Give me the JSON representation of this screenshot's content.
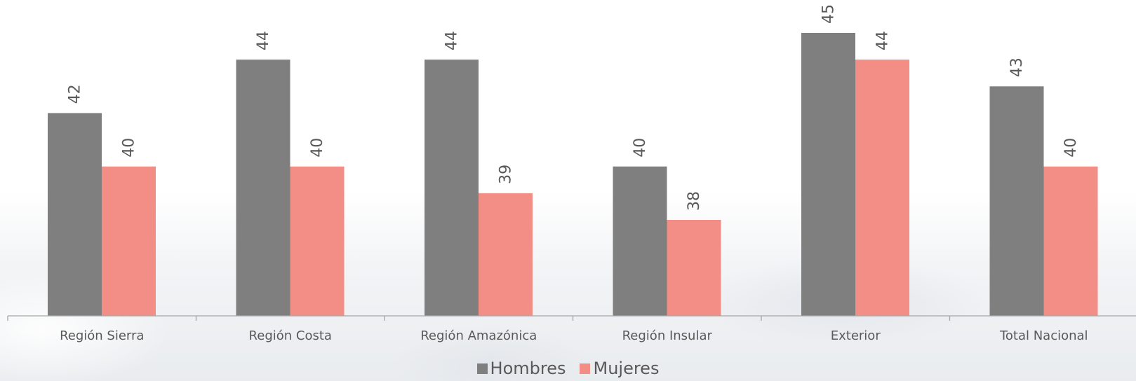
{
  "chart_data": {
    "type": "bar",
    "categories": [
      "Región Sierra",
      "Región Costa",
      "Región Amazónica",
      "Región Insular",
      "Exterior",
      "Total Nacional"
    ],
    "series": [
      {
        "name": "Hombres",
        "values": [
          42,
          44,
          44,
          40,
          45,
          43
        ],
        "color": "#7f7f7f"
      },
      {
        "name": "Mujeres",
        "values": [
          40,
          40,
          39,
          38,
          44,
          40
        ],
        "color": "#f28e85"
      }
    ],
    "value_labels": {
      "Hombres": [
        "42",
        "44",
        "44",
        "40",
        "45",
        "43"
      ],
      "Mujeres": [
        "40",
        "40",
        "39",
        "38",
        "44",
        "40"
      ]
    },
    "grid": false,
    "legend_position": "bottom",
    "data_labels_rotated": true,
    "colors": {
      "axis": "#a6a6a6",
      "text": "#595959"
    }
  },
  "legend": {
    "hombres_label": "Hombres",
    "mujeres_label": "Mujeres"
  }
}
